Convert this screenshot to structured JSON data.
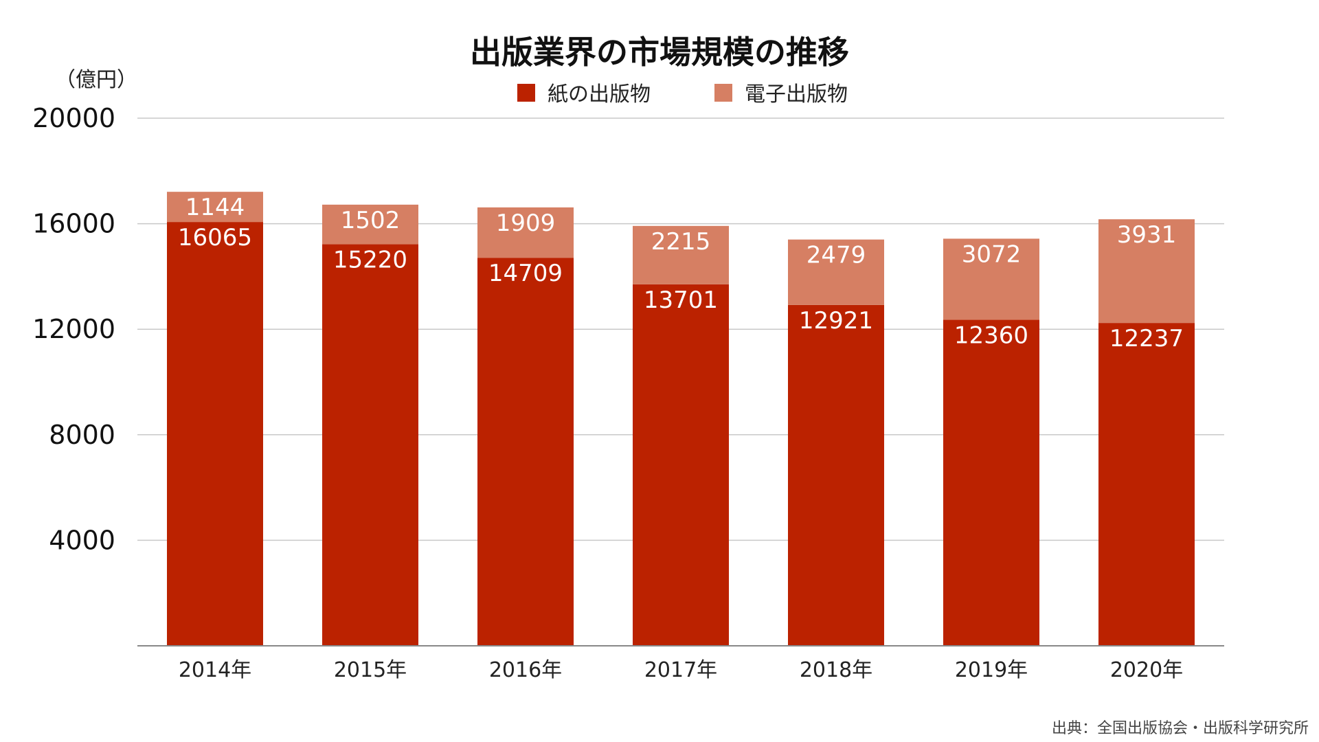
{
  "chart_data": {
    "type": "bar",
    "stacked": true,
    "title": "出版業界の市場規模の推移",
    "unit_label": "（億円）",
    "categories": [
      "2014年",
      "2015年",
      "2016年",
      "2017年",
      "2018年",
      "2019年",
      "2020年"
    ],
    "series": [
      {
        "name": "紙の出版物",
        "color": "#bb2200",
        "values": [
          16065,
          15220,
          14709,
          13701,
          12921,
          12360,
          12237
        ]
      },
      {
        "name": "電子出版物",
        "color": "#d67f63",
        "values": [
          1144,
          1502,
          1909,
          2215,
          2479,
          3072,
          3931
        ]
      }
    ],
    "y_ticks": [
      "20000",
      "16000",
      "12000",
      "8000",
      "4000"
    ],
    "ylim": [
      0,
      20000
    ],
    "grid": true,
    "legend_position": "top-center"
  },
  "source": "出典：全国出版協会・出版科学研究所"
}
